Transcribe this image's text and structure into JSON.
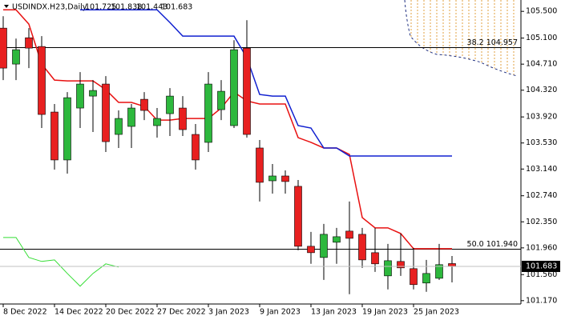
{
  "chart_data": {
    "type": "candlestick",
    "symbol": "USDINDX.H23,Daily",
    "categories": [
      "8 Dec 2022",
      null,
      null,
      null,
      "14 Dec 2022",
      null,
      null,
      null,
      "20 Dec 2022",
      null,
      null,
      null,
      "27 Dec 2022",
      null,
      null,
      null,
      "3 Jan 2023",
      null,
      null,
      null,
      "9 Jan 2023",
      null,
      null,
      null,
      "13 Jan 2023",
      null,
      null,
      null,
      "19 Jan 2023",
      null,
      null,
      null,
      "25 Jan 2023",
      null,
      null,
      null
    ],
    "open": [
      105.249,
      104.711,
      105.105,
      104.974,
      103.993,
      103.276,
      104.053,
      104.232,
      104.412,
      103.658,
      103.778,
      104.184,
      103.79,
      103.969,
      104.053,
      103.658,
      103.539,
      104.029,
      103.79,
      104.95,
      103.455,
      102.964,
      103.036,
      102.881,
      101.984,
      101.816,
      102.044,
      102.211,
      102.163,
      101.888,
      101.541,
      101.757,
      101.649,
      101.434,
      101.505,
      101.725
    ],
    "high": [
      105.428,
      105.093,
      105.249,
      105.129,
      104.113,
      104.292,
      104.591,
      104.471,
      104.531,
      104.017,
      104.113,
      104.292,
      104.053,
      104.352,
      104.232,
      103.814,
      104.591,
      104.471,
      105.069,
      105.368,
      103.574,
      103.216,
      103.12,
      102.976,
      102.199,
      102.319,
      102.259,
      102.654,
      102.259,
      102.259,
      102.02,
      102.175,
      101.96,
      101.78,
      102.02,
      101.838
    ],
    "low": [
      104.471,
      104.471,
      104.651,
      103.754,
      103.132,
      103.072,
      103.754,
      103.694,
      103.395,
      103.455,
      103.455,
      103.873,
      103.61,
      103.634,
      103.634,
      103.132,
      103.395,
      103.873,
      103.754,
      103.61,
      102.654,
      102.773,
      102.773,
      101.924,
      101.721,
      101.481,
      101.721,
      101.266,
      101.661,
      101.601,
      101.338,
      101.541,
      101.338,
      101.302,
      101.481,
      101.443
    ],
    "close": [
      104.651,
      104.926,
      104.95,
      103.957,
      103.276,
      104.208,
      104.412,
      104.316,
      103.55,
      103.897,
      104.053,
      104.017,
      103.897,
      104.232,
      103.73,
      103.276,
      104.412,
      104.304,
      104.926,
      103.658,
      102.941,
      103.036,
      102.953,
      101.984,
      101.888,
      102.163,
      102.127,
      102.103,
      101.78,
      101.721,
      101.768,
      101.661,
      101.41,
      101.577,
      101.709,
      101.683
    ],
    "up_color": "#2db83d",
    "down_color": "#e82020",
    "lines": [
      {
        "color": "#e81010",
        "values": [
          105.524,
          105.524,
          105.309,
          104.711,
          104.471,
          104.459,
          104.459,
          104.459,
          104.328,
          104.137,
          104.137,
          104.077,
          103.873,
          103.873,
          103.897,
          103.897,
          103.897,
          104.053,
          104.292,
          104.16,
          104.113,
          104.113,
          104.113,
          103.61,
          103.539,
          103.455,
          103.455,
          103.359,
          102.414,
          102.259,
          102.259,
          102.175,
          101.948,
          101.948,
          101.948,
          101.948
        ]
      },
      {
        "color": "#1020d0",
        "values": [
          null,
          null,
          null,
          null,
          null,
          null,
          105.524,
          105.524,
          105.524,
          105.524,
          105.524,
          105.524,
          105.524,
          105.333,
          105.129,
          105.129,
          105.129,
          105.129,
          105.129,
          104.806,
          104.256,
          104.232,
          104.232,
          103.79,
          103.754,
          103.455,
          103.455,
          103.335,
          103.335,
          103.335,
          103.335,
          103.335,
          103.335,
          103.335,
          103.335,
          103.335
        ]
      },
      {
        "color": "#33dd33",
        "values": [
          102.115,
          102.115,
          101.816,
          101.757,
          101.78,
          101.577,
          101.386,
          101.577,
          101.721,
          101.673,
          null,
          null,
          null,
          null,
          null,
          null,
          null,
          null,
          null,
          null,
          null,
          null,
          null,
          null,
          null,
          null,
          null,
          null,
          null,
          null,
          null,
          null,
          null,
          null,
          null,
          null
        ]
      }
    ],
    "levels": [
      {
        "value": 104.957,
        "label": "38.2 104.957"
      },
      {
        "value": 101.94,
        "label": "50.0 101.940"
      }
    ],
    "ylim": [
      101.12,
      105.67
    ],
    "yticks": [
      {
        "value": 105.5,
        "label": "105.500"
      },
      {
        "value": 105.1,
        "label": "105.100"
      },
      {
        "value": 104.71,
        "label": "104.710"
      },
      {
        "value": 104.32,
        "label": "104.320"
      },
      {
        "value": 103.92,
        "label": "103.920"
      },
      {
        "value": 103.53,
        "label": "103.530"
      },
      {
        "value": 103.14,
        "label": "103.140"
      },
      {
        "value": 102.74,
        "label": "102.740"
      },
      {
        "value": 102.35,
        "label": "102.350"
      },
      {
        "value": 101.96,
        "label": "101.960"
      },
      {
        "value": 101.56,
        "label": "101.560"
      },
      {
        "value": 101.17,
        "label": "101.170"
      }
    ]
  }
}
